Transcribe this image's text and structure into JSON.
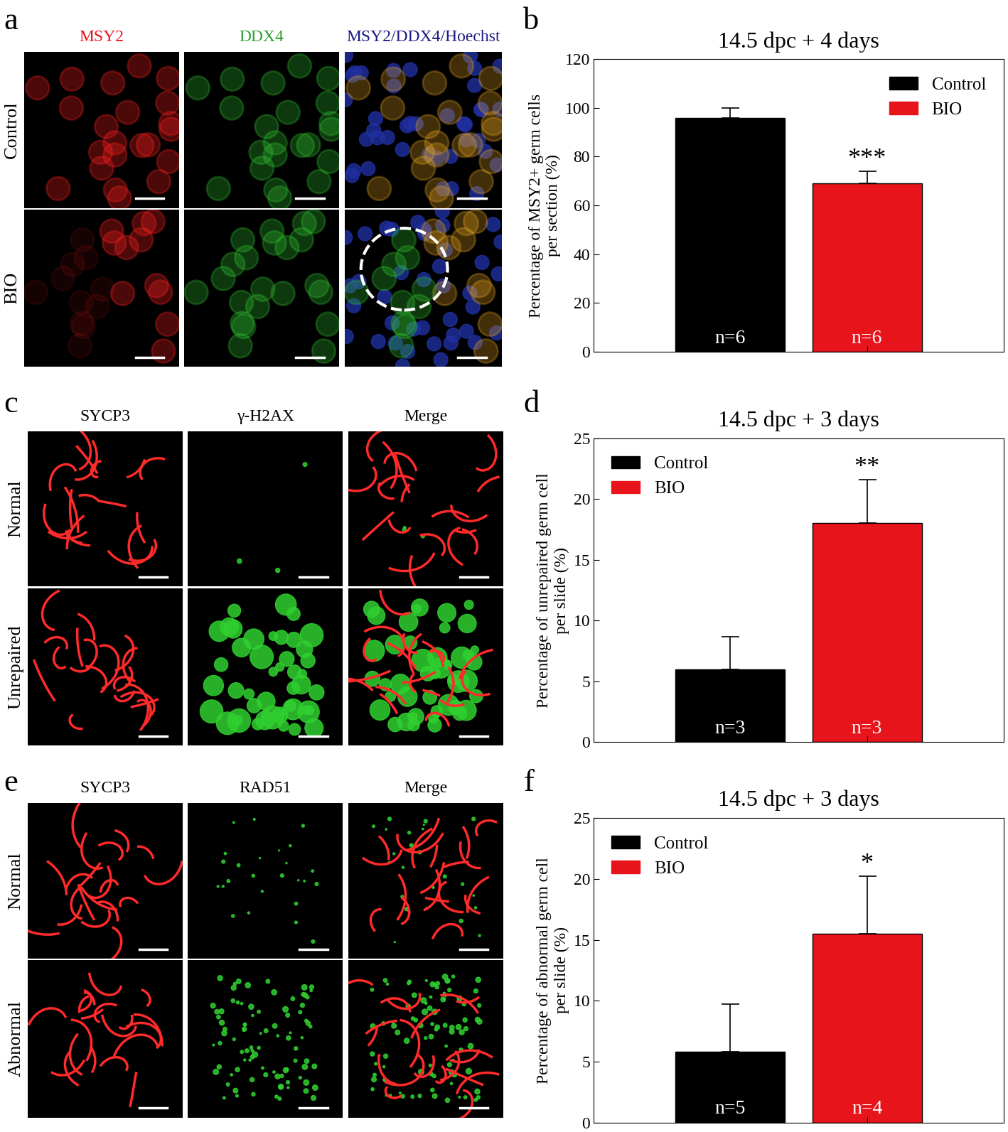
{
  "panels": [
    {
      "panel_label": "a",
      "columns": [
        {
          "text": "MSY2",
          "color": "#e8141b"
        },
        {
          "text": "DDX4",
          "color": "#2ca02c"
        },
        {
          "text": "MSY2/DDX4/Hoechst",
          "color": "#1a1a80"
        }
      ],
      "rows": [
        "Control",
        "BIO"
      ]
    },
    {
      "panel_label": "c",
      "columns": [
        {
          "text": "SYCP3",
          "color": "#000000"
        },
        {
          "text": "γ-H2AX",
          "color": "#000000"
        },
        {
          "text": "Merge",
          "color": "#000000"
        }
      ],
      "rows": [
        "Normal",
        "Unrepaired"
      ]
    },
    {
      "panel_label": "e",
      "columns": [
        {
          "text": "SYCP3",
          "color": "#000000"
        },
        {
          "text": "RAD51",
          "color": "#000000"
        },
        {
          "text": "Merge",
          "color": "#000000"
        }
      ],
      "rows": [
        "Normal",
        "Abnormal"
      ]
    }
  ],
  "chart_data": [
    {
      "type": "bar",
      "panel_label": "b",
      "title": "14.5 dpc + 4 days",
      "y_label": "Percentage of MSY2+ germ cells\nper section (%)",
      "categories": [
        "Control",
        "BIO"
      ],
      "values": [
        96,
        69
      ],
      "errors": [
        4,
        5
      ],
      "colors": [
        "#000000",
        "#e8141b"
      ],
      "sample_sizes": [
        "n=6",
        "n=6"
      ],
      "annotations": [
        {
          "category": "BIO",
          "text": "***"
        }
      ],
      "ylim": [
        0,
        120
      ],
      "yticks": [
        0,
        20,
        40,
        60,
        80,
        100,
        120
      ],
      "legend": "upper right",
      "tick_labels": "y"
    },
    {
      "type": "bar",
      "panel_label": "d",
      "title": "14.5 dpc + 3 days",
      "y_label": "Percentage of unrepaired germ cell\nper slide (%)",
      "categories": [
        "Control",
        "BIO"
      ],
      "values": [
        6,
        18
      ],
      "errors": [
        2.7,
        3.6
      ],
      "colors": [
        "#000000",
        "#e8141b"
      ],
      "sample_sizes": [
        "n=3",
        "n=3"
      ],
      "annotations": [
        {
          "category": "BIO",
          "text": "**"
        }
      ],
      "ylim": [
        0,
        25
      ],
      "yticks": [
        0,
        5,
        10,
        15,
        20,
        25
      ],
      "legend": "upper left",
      "tick_labels": "y"
    },
    {
      "type": "bar",
      "panel_label": "f",
      "title": "14.5 dpc + 3 days",
      "y_label": "Percentage of abnormal germ cell\nper slide (%)",
      "categories": [
        "Control",
        "BIO"
      ],
      "values": [
        5.8,
        15.5
      ],
      "errors": [
        3.9,
        4.7
      ],
      "colors": [
        "#000000",
        "#e8141b"
      ],
      "sample_sizes": [
        "n=5",
        "n=4"
      ],
      "annotations": [
        {
          "category": "BIO",
          "text": "*"
        }
      ],
      "ylim": [
        0,
        25
      ],
      "yticks": [
        0,
        5,
        10,
        15,
        20,
        25
      ],
      "legend": "upper left",
      "tick_labels": "y"
    }
  ]
}
